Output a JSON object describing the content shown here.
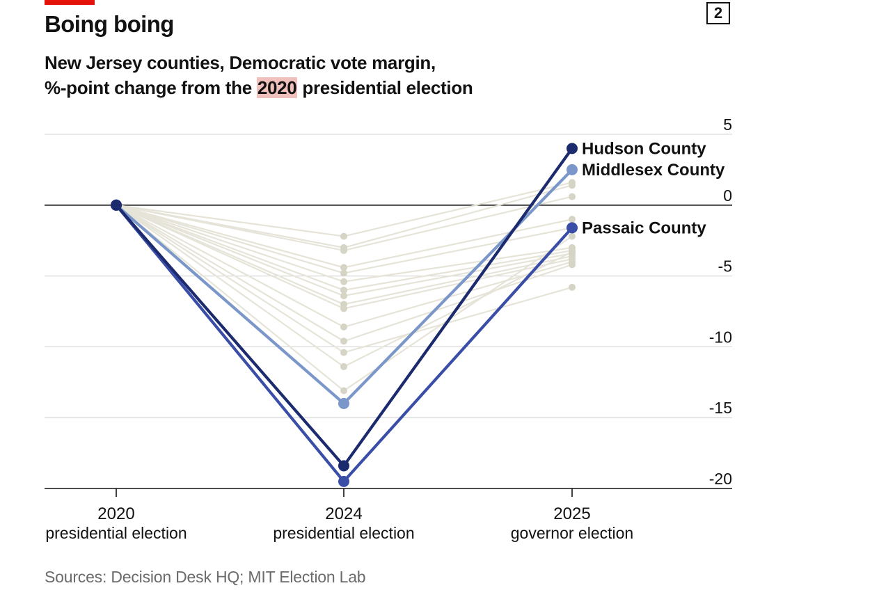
{
  "header": {
    "chart_number": "2",
    "title": "Boing boing",
    "subtitle_line1": "New Jersey counties, Democratic vote margin,",
    "subtitle_line2_pre": "%-point change from the ",
    "subtitle_line2_highlight": "2020",
    "subtitle_line2_post": " presidential election"
  },
  "source": "Sources: Decision Desk HQ; MIT Election Lab",
  "colors": {
    "accent_red": "#e3120b",
    "highlight": "#f0c0bc",
    "hudson": "#1c2a6e",
    "middlesex": "#7b97c9",
    "passaic": "#3a4ea8",
    "background_lines": "#e6e4d8",
    "background_dots": "#d6d4c4",
    "gridline": "#d9d9d9",
    "zero_line": "#121212"
  },
  "chart_data": {
    "type": "line",
    "title": "Boing boing",
    "subtitle": "New Jersey counties, Democratic vote margin, %-point change from the 2020 presidential election",
    "x_categories": [
      {
        "year": "2020",
        "label": "presidential election"
      },
      {
        "year": "2024",
        "label": "presidential election"
      },
      {
        "year": "2025",
        "label": "governor election"
      }
    ],
    "ylim": [
      -20,
      5
    ],
    "yticks": [
      5,
      0,
      -5,
      -10,
      -15,
      -20
    ],
    "ytick_labels": [
      "5",
      "0",
      "-5",
      "-10",
      "-15",
      "-20"
    ],
    "axis_side": "right",
    "highlight_series": [
      {
        "name": "Hudson County",
        "color_key": "hudson",
        "values": [
          0,
          -18.4,
          4.0
        ]
      },
      {
        "name": "Middlesex County",
        "color_key": "middlesex",
        "values": [
          0,
          -14.0,
          2.5
        ]
      },
      {
        "name": "Passaic County",
        "color_key": "passaic",
        "values": [
          0,
          -19.5,
          -1.6
        ]
      }
    ],
    "background_series": [
      {
        "values": [
          0,
          -2.2,
          1.6
        ]
      },
      {
        "values": [
          0,
          -3.0,
          1.4
        ]
      },
      {
        "values": [
          0,
          -3.2,
          0.6
        ]
      },
      {
        "values": [
          0,
          -4.4,
          -1.0
        ]
      },
      {
        "values": [
          0,
          -4.8,
          -1.6
        ]
      },
      {
        "values": [
          0,
          -5.4,
          -3.0
        ]
      },
      {
        "values": [
          0,
          -6.0,
          -3.2
        ]
      },
      {
        "values": [
          0,
          -6.4,
          -3.4
        ]
      },
      {
        "values": [
          0,
          -7.0,
          -3.6
        ]
      },
      {
        "values": [
          0,
          -7.3,
          -3.8
        ]
      },
      {
        "values": [
          0,
          -8.6,
          -4.0
        ]
      },
      {
        "values": [
          0,
          -9.6,
          -4.2
        ]
      },
      {
        "values": [
          0,
          -10.4,
          -5.8
        ]
      },
      {
        "values": [
          0,
          -11.4,
          -3.3
        ]
      },
      {
        "values": [
          0,
          -13.1,
          -2.2
        ]
      }
    ],
    "source": "Sources: Decision Desk HQ; MIT Election Lab"
  }
}
